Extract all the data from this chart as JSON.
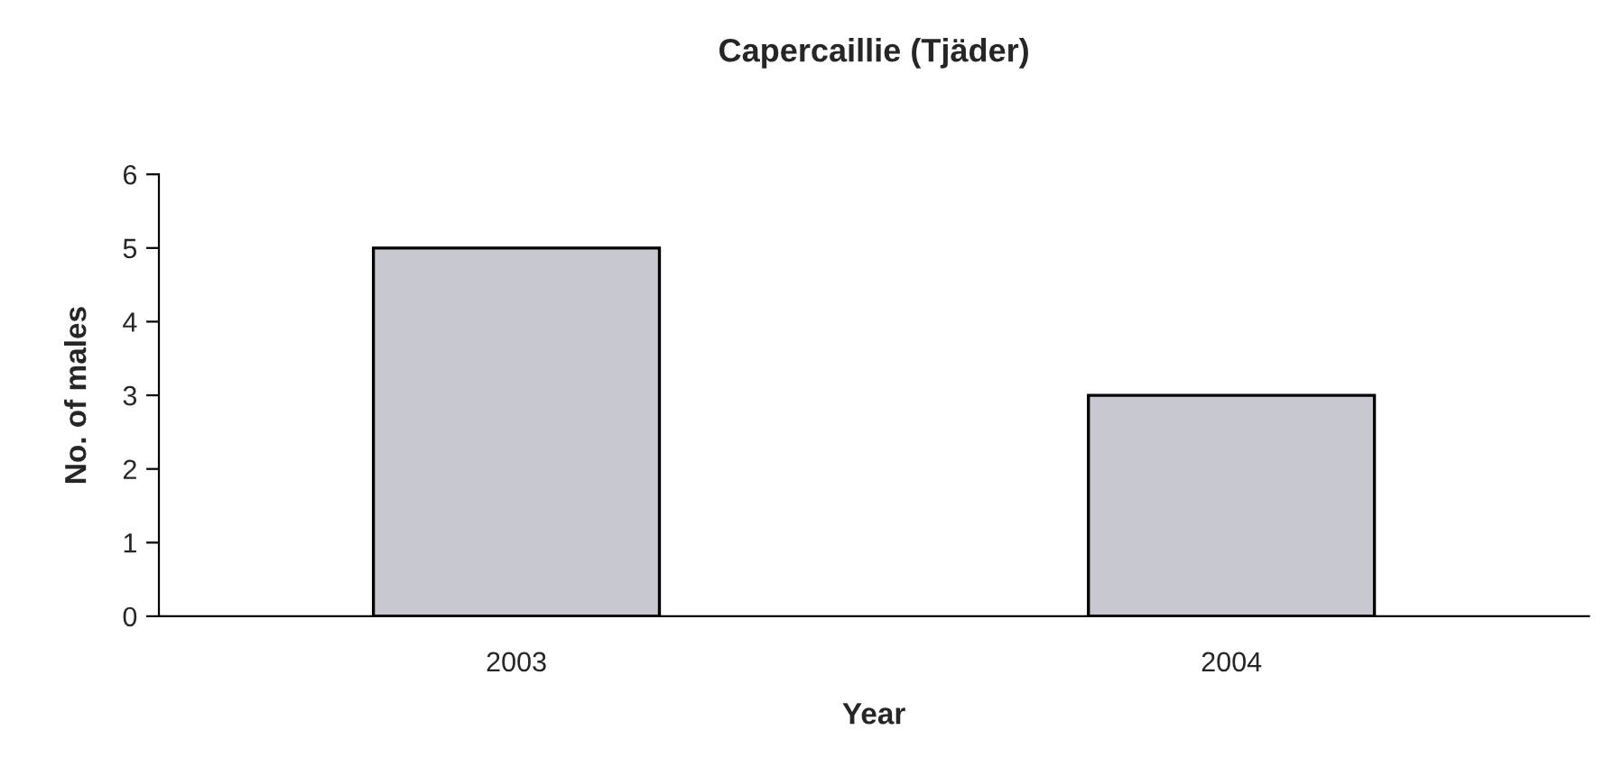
{
  "chart_data": {
    "type": "bar",
    "title": "Capercaillie (Tjäder)",
    "xlabel": "Year",
    "ylabel": "No. of males",
    "categories": [
      "2003",
      "2004"
    ],
    "values": [
      5,
      3
    ],
    "color": "#c8c8d0",
    "ylim": [
      0,
      6
    ],
    "yticks": [
      0,
      1,
      2,
      3,
      4,
      5,
      6
    ],
    "grid": false,
    "legend": false
  }
}
